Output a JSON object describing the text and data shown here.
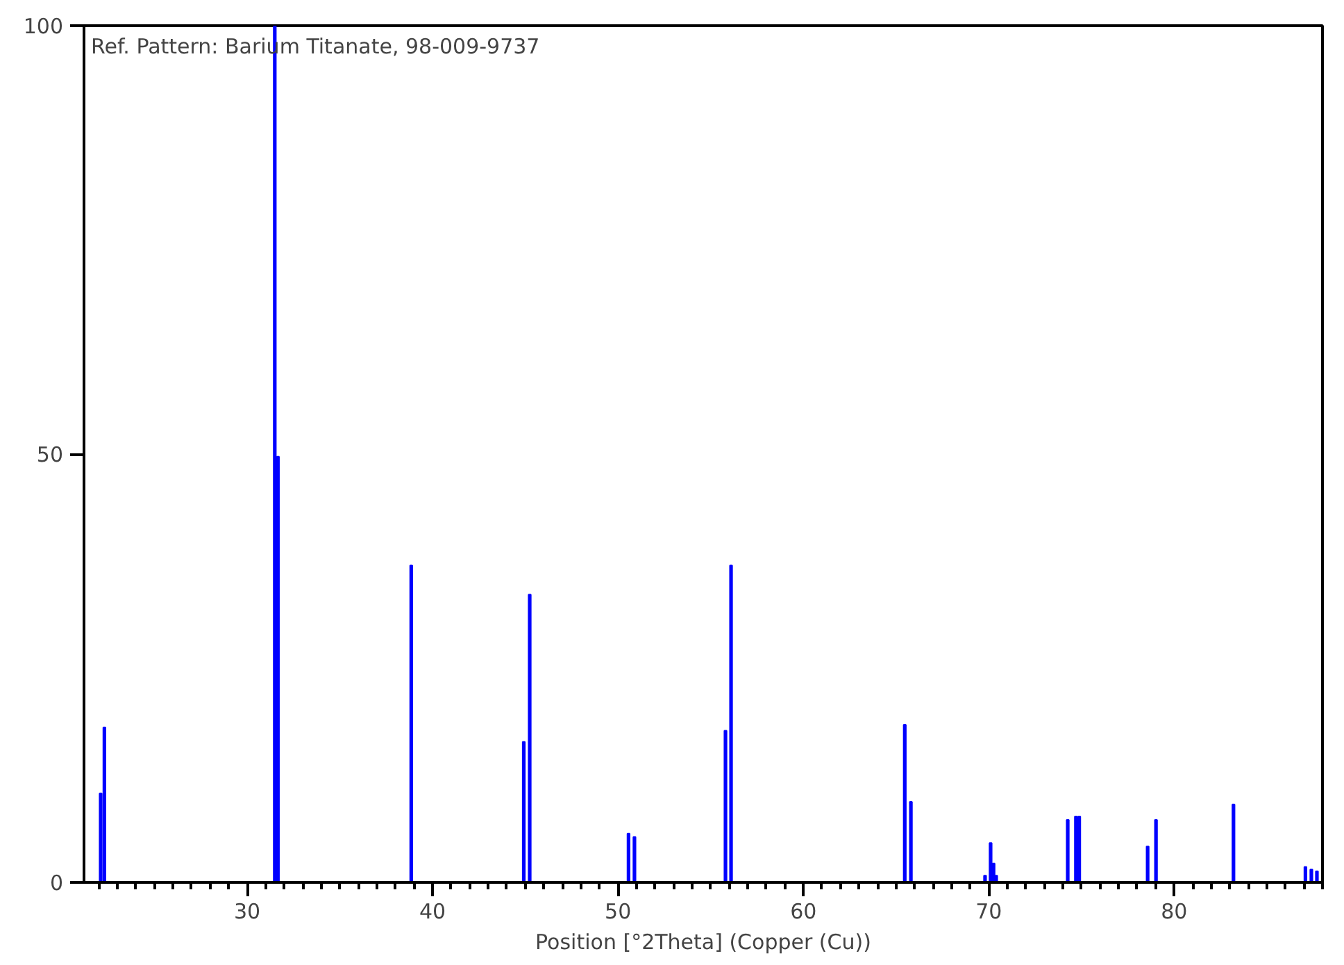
{
  "chart_data": {
    "type": "bar",
    "annotations": [
      "Ref. Pattern: Barium Titanate, 98-009-9737"
    ],
    "xlabel": "Position [°2Theta] (Copper (Cu))",
    "x": [
      22.1,
      22.3,
      31.49,
      31.66,
      38.85,
      44.92,
      45.24,
      50.57,
      50.89,
      55.8,
      56.1,
      65.47,
      65.8,
      69.8,
      70.1,
      70.26,
      70.4,
      74.26,
      74.7,
      74.88,
      78.57,
      79.02,
      83.2,
      87.08,
      87.4,
      87.7
    ],
    "values": [
      10.4,
      18.1,
      100,
      49.7,
      37.0,
      16.4,
      33.6,
      5.7,
      5.3,
      17.7,
      37.0,
      18.4,
      9.4,
      0.8,
      4.6,
      2.2,
      0.8,
      7.3,
      7.7,
      7.7,
      4.2,
      7.3,
      9.1,
      1.8,
      1.5,
      1.3
    ],
    "color": "#0000ff",
    "xlim": [
      21.2,
      88.0
    ],
    "ylim": [
      0,
      100
    ],
    "xticks": [
      30,
      40,
      50,
      60,
      70,
      80
    ],
    "yticks": [
      0,
      50,
      100
    ],
    "grid": false
  }
}
